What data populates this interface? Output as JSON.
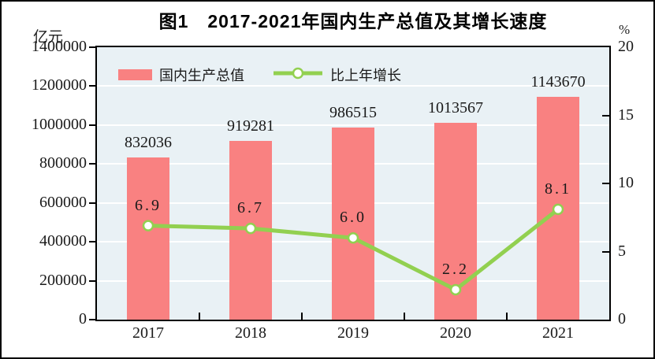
{
  "title": "图1　2017-2021年国内生产总值及其增长速度",
  "left_axis": {
    "unit": "亿元",
    "min": 0,
    "max": 1400000,
    "ticks": [
      0,
      200000,
      400000,
      600000,
      800000,
      1000000,
      1200000,
      1400000
    ]
  },
  "right_axis": {
    "unit": "%",
    "min": 0,
    "max": 20,
    "ticks": [
      0,
      5,
      10,
      15,
      20
    ]
  },
  "legend": {
    "items": [
      {
        "label": "国内生产总值",
        "marker": "bar-swatch"
      },
      {
        "label": "比上年增长",
        "marker": "line-marker-swatch"
      }
    ]
  },
  "colors": {
    "bar": "#F98181",
    "line": "#92D050",
    "marker_fill": "#FFFFFF",
    "plot_background": "#E9F1F5",
    "gridline": "#FFFFFF",
    "axis": "#000000"
  },
  "chart_data": {
    "type": "bar",
    "title": "图1　2017-2021年国内生产总值及其增长速度",
    "categories": [
      "2017",
      "2018",
      "2019",
      "2020",
      "2021"
    ],
    "series": [
      {
        "name": "国内生产总值",
        "kind": "bar",
        "axis": "left",
        "values": [
          832036,
          919281,
          986515,
          1013567,
          1143670
        ],
        "labels": [
          "832036",
          "919281",
          "986515",
          "1013567",
          "1143670"
        ],
        "color": "#F98181"
      },
      {
        "name": "比上年增长",
        "kind": "line",
        "axis": "right",
        "values": [
          6.9,
          6.7,
          6.0,
          2.2,
          8.1
        ],
        "labels": [
          "6.9",
          "6.7",
          "6.0",
          "2.2",
          "8.1"
        ],
        "color": "#92D050"
      }
    ],
    "xlabel": "",
    "ylabel_left": "亿元",
    "ylabel_right": "%",
    "left_ylim": [
      0,
      1400000
    ],
    "right_ylim": [
      0,
      20
    ],
    "grid": true,
    "gridline_interval_left": 200000,
    "legend_position": "top-left-inside"
  }
}
